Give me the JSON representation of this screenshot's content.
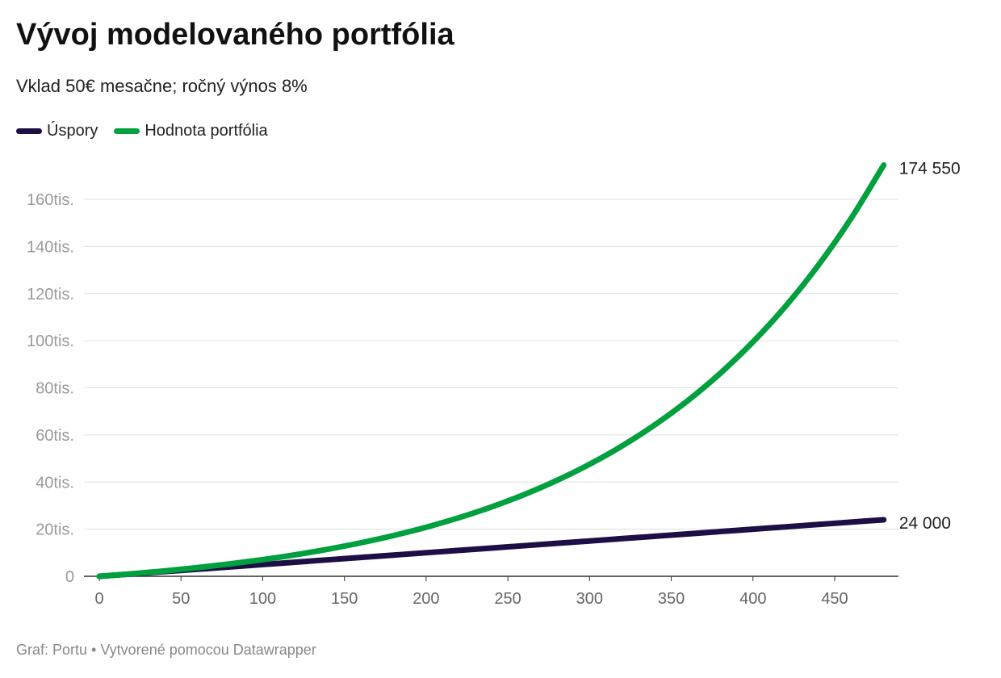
{
  "chart_data": {
    "type": "line",
    "title": "Vývoj modelovaného portfólia",
    "subtitle": "Vklad 50€ mesačne; ročný výnos 8%",
    "xlabel": "",
    "ylabel": "",
    "xlim": [
      0,
      480
    ],
    "ylim": [
      0,
      160000
    ],
    "x_ticks": [
      0,
      50,
      100,
      150,
      200,
      250,
      300,
      350,
      400,
      450
    ],
    "y_ticks": [
      0,
      20000,
      40000,
      60000,
      80000,
      100000,
      120000,
      140000,
      160000
    ],
    "y_tick_labels": [
      "0",
      "20tis.",
      "40tis.",
      "60tis.",
      "80tis.",
      "100tis.",
      "120tis.",
      "140tis.",
      "160tis."
    ],
    "grid": "horizontal",
    "legend_position": "top-left",
    "x": [
      0,
      20,
      40,
      60,
      80,
      100,
      120,
      140,
      160,
      180,
      200,
      220,
      240,
      260,
      280,
      300,
      320,
      340,
      360,
      380,
      400,
      420,
      440,
      460,
      480
    ],
    "series": [
      {
        "name": "Úspory",
        "color": "#1d0f46",
        "values": [
          0,
          1000,
          2000,
          3000,
          4000,
          5000,
          6000,
          7000,
          8000,
          9000,
          10000,
          11000,
          12000,
          13000,
          14000,
          15000,
          16000,
          17000,
          18000,
          19000,
          20000,
          21000,
          22000,
          23000,
          24000
        ],
        "end_label": "24 000"
      },
      {
        "name": "Hodnota portfólia",
        "color": "#00a03e",
        "values": [
          0,
          1066,
          2283,
          3674,
          5262,
          7076,
          9147,
          11513,
          14216,
          17302,
          20827,
          24853,
          29451,
          34703,
          40701,
          47551,
          55376,
          64312,
          74518,
          86175,
          99489,
          114695,
          132062,
          151898,
          174550
        ],
        "end_label": "174 550"
      }
    ]
  },
  "footer": "Graf: Portu • Vytvorené pomocou Datawrapper"
}
